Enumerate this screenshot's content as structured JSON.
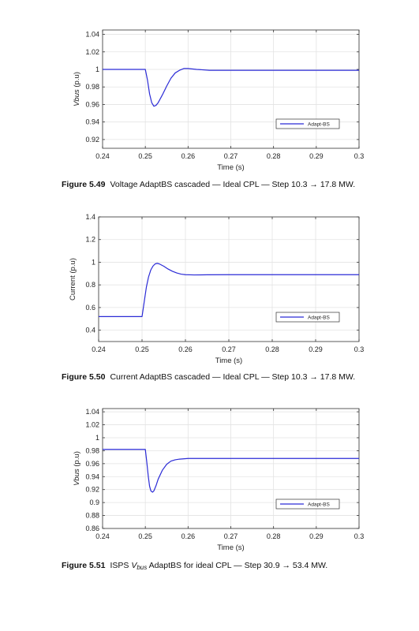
{
  "chart_data": [
    {
      "type": "line",
      "xlabel": "Time (s)",
      "ylabel": "Vbus (p.u)",
      "ylabel_parts": [
        "Vbus",
        " (p.u)"
      ],
      "xlim": [
        0.24,
        0.3
      ],
      "ylim": [
        0.91,
        1.045
      ],
      "x_ticks": [
        0.24,
        0.25,
        0.26,
        0.27,
        0.28,
        0.29,
        0.3
      ],
      "x_tick_labels": [
        "0.24",
        "0.25",
        "0.26",
        "0.27",
        "0.28",
        "0.29",
        "0.3"
      ],
      "y_ticks": [
        0.92,
        0.94,
        0.96,
        0.98,
        1.0,
        1.02,
        1.04
      ],
      "y_tick_labels": [
        "0.92",
        "0.94",
        "0.96",
        "0.98",
        "1",
        "1.02",
        "1.04"
      ],
      "grid": true,
      "legend_position": "lower-right",
      "series": [
        {
          "name": "Adapt-BS",
          "color": "#2b2bd6",
          "x": [
            0.24,
            0.25,
            0.2505,
            0.251,
            0.2515,
            0.252,
            0.2525,
            0.253,
            0.254,
            0.255,
            0.256,
            0.257,
            0.258,
            0.259,
            0.26,
            0.262,
            0.265,
            0.27,
            0.28,
            0.29,
            0.3
          ],
          "y": [
            1.0,
            1.0,
            0.988,
            0.972,
            0.962,
            0.958,
            0.959,
            0.962,
            0.971,
            0.981,
            0.99,
            0.996,
            0.999,
            1.001,
            1.001,
            1.0,
            0.999,
            0.999,
            0.999,
            0.999,
            0.999
          ]
        }
      ]
    },
    {
      "type": "line",
      "xlabel": "Time (s)",
      "ylabel": "Current (p.u)",
      "xlim": [
        0.24,
        0.3
      ],
      "ylim": [
        0.3,
        1.4
      ],
      "x_ticks": [
        0.24,
        0.25,
        0.26,
        0.27,
        0.28,
        0.29,
        0.3
      ],
      "x_tick_labels": [
        "0.24",
        "0.25",
        "0.26",
        "0.27",
        "0.28",
        "0.29",
        "0.3"
      ],
      "y_ticks": [
        0.4,
        0.6,
        0.8,
        1.0,
        1.2,
        1.4
      ],
      "y_tick_labels": [
        "0.4",
        "0.6",
        "0.8",
        "1",
        "1.2",
        "1.4"
      ],
      "grid": true,
      "legend_position": "lower-right",
      "series": [
        {
          "name": "Adapt-BS",
          "color": "#2b2bd6",
          "x": [
            0.24,
            0.25,
            0.2505,
            0.251,
            0.2515,
            0.252,
            0.2525,
            0.253,
            0.2535,
            0.254,
            0.255,
            0.256,
            0.257,
            0.258,
            0.259,
            0.26,
            0.262,
            0.265,
            0.27,
            0.28,
            0.29,
            0.3
          ],
          "y": [
            0.52,
            0.52,
            0.65,
            0.78,
            0.87,
            0.93,
            0.965,
            0.985,
            0.99,
            0.985,
            0.965,
            0.94,
            0.92,
            0.905,
            0.895,
            0.89,
            0.888,
            0.889,
            0.89,
            0.89,
            0.89,
            0.89
          ]
        }
      ]
    },
    {
      "type": "line",
      "xlabel": "Time (s)",
      "ylabel": "Vbus (p.u)",
      "ylabel_parts": [
        "Vbus",
        " (p.u)"
      ],
      "xlim": [
        0.24,
        0.3
      ],
      "ylim": [
        0.86,
        1.045
      ],
      "x_ticks": [
        0.24,
        0.25,
        0.26,
        0.27,
        0.28,
        0.29,
        0.3
      ],
      "x_tick_labels": [
        "0.24",
        "0.25",
        "0.26",
        "0.27",
        "0.28",
        "0.29",
        "0.3"
      ],
      "y_ticks": [
        0.86,
        0.88,
        0.9,
        0.92,
        0.94,
        0.96,
        0.98,
        1.0,
        1.02,
        1.04
      ],
      "y_tick_labels": [
        "0.86",
        "0.88",
        "0.9",
        "0.92",
        "0.94",
        "0.96",
        "0.98",
        "1",
        "1.02",
        "1.04"
      ],
      "grid": true,
      "legend_position": "lower-right",
      "series": [
        {
          "name": "Adapt-BS",
          "color": "#2b2bd6",
          "x": [
            0.24,
            0.25,
            0.2503,
            0.2507,
            0.251,
            0.2513,
            0.2517,
            0.252,
            0.2525,
            0.253,
            0.254,
            0.255,
            0.256,
            0.257,
            0.258,
            0.26,
            0.265,
            0.27,
            0.28,
            0.29,
            0.3
          ],
          "y": [
            0.982,
            0.982,
            0.965,
            0.94,
            0.925,
            0.918,
            0.916,
            0.918,
            0.926,
            0.936,
            0.95,
            0.959,
            0.964,
            0.966,
            0.967,
            0.968,
            0.968,
            0.968,
            0.968,
            0.968,
            0.968
          ]
        }
      ]
    }
  ],
  "captions": [
    {
      "label": "Figure 5.49",
      "text": "Voltage AdaptBS cascaded — Ideal CPL — Step 10.3 → 17.8 MW."
    },
    {
      "label": "Figure 5.50",
      "text": "Current AdaptBS cascaded — Ideal CPL — Step 10.3 → 17.8 MW."
    },
    {
      "label": "Figure 5.51",
      "text_before": "ISPS ",
      "v": "V",
      "sub": "bus",
      "text_after": " AdaptBS for ideal CPL — Step 30.9 → 53.4 MW."
    }
  ],
  "colors": {
    "series": "#2b2bd6",
    "grid": "#e3e3e3",
    "axis": "#333333"
  }
}
